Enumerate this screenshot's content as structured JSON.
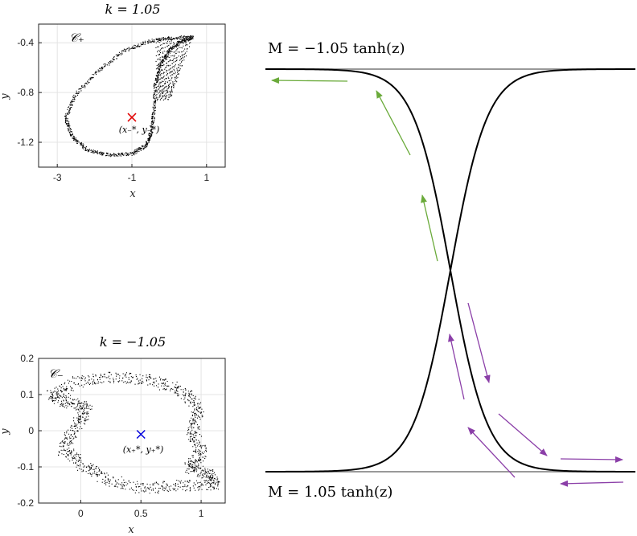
{
  "chart_data": [
    {
      "type": "scatter",
      "title": "k = 1.05",
      "xlabel": "x",
      "ylabel": "y",
      "xlim": [
        -3.5,
        1.5
      ],
      "ylim": [
        -1.4,
        -0.25
      ],
      "xticks": [
        -3,
        -1,
        1
      ],
      "yticks": [
        -0.4,
        -0.8,
        -1.2
      ],
      "xtick_labels": [
        "-3",
        "-1",
        "1"
      ],
      "ytick_labels": [
        "-0.4",
        "-0.8",
        "-1.2"
      ],
      "grid": true,
      "set_label": "𝒞₊",
      "fixed_point": {
        "x": -1.0,
        "y": -1.0,
        "label": "(x₋*, y₋*)",
        "marker": "x",
        "color": "#e00000"
      },
      "attractor_outline": [
        [
          0.62,
          -0.35
        ],
        [
          0.0,
          -0.36
        ],
        [
          -0.5,
          -0.38
        ],
        [
          -1.2,
          -0.46
        ],
        [
          -1.9,
          -0.62
        ],
        [
          -2.55,
          -0.82
        ],
        [
          -2.78,
          -1.0
        ],
        [
          -2.62,
          -1.15
        ],
        [
          -2.2,
          -1.26
        ],
        [
          -1.6,
          -1.3
        ],
        [
          -1.0,
          -1.29
        ],
        [
          -0.62,
          -1.22
        ],
        [
          -0.5,
          -1.12
        ],
        [
          -0.42,
          -0.95
        ],
        [
          -0.38,
          -0.72
        ],
        [
          -0.22,
          -0.55
        ],
        [
          0.05,
          -0.44
        ],
        [
          0.35,
          -0.38
        ],
        [
          0.62,
          -0.35
        ]
      ],
      "color": "#000000"
    },
    {
      "type": "scatter",
      "title": "k = −1.05",
      "xlabel": "x",
      "ylabel": "y",
      "xlim": [
        -0.35,
        1.2
      ],
      "ylim": [
        -0.2,
        0.2
      ],
      "xticks": [
        0,
        0.5,
        1
      ],
      "yticks": [
        0.2,
        0.1,
        0,
        -0.1,
        -0.2
      ],
      "xtick_labels": [
        "0",
        "0.5",
        "1"
      ],
      "ytick_labels": [
        "0.2",
        "0.1",
        "0",
        "-0.1",
        "-0.2"
      ],
      "grid": true,
      "set_label": "𝒞₋",
      "fixed_point": {
        "x": 0.5,
        "y": -0.01,
        "label": "(x₊*, y₊*)",
        "marker": "x",
        "color": "#0000dd"
      },
      "attractor_outline": [
        [
          -0.25,
          0.1
        ],
        [
          0.0,
          0.14
        ],
        [
          0.3,
          0.15
        ],
        [
          0.6,
          0.14
        ],
        [
          0.85,
          0.11
        ],
        [
          0.98,
          0.06
        ],
        [
          0.92,
          0.0
        ],
        [
          1.0,
          -0.06
        ],
        [
          0.9,
          -0.1
        ],
        [
          1.05,
          -0.12
        ],
        [
          1.12,
          -0.15
        ],
        [
          0.8,
          -0.15
        ],
        [
          0.5,
          -0.16
        ],
        [
          0.2,
          -0.13
        ],
        [
          0.0,
          -0.09
        ],
        [
          -0.15,
          -0.05
        ],
        [
          -0.05,
          0.01
        ],
        [
          0.05,
          0.06
        ],
        [
          -0.1,
          0.08
        ],
        [
          -0.25,
          0.1
        ]
      ],
      "color": "#000000"
    },
    {
      "type": "line",
      "series": [
        {
          "name": "M = −1.05 tanh(z)",
          "amplitude": -1.05,
          "color": "#000000"
        },
        {
          "name": "M = 1.05 tanh(z)",
          "amplitude": 1.05,
          "color": "#000000"
        }
      ],
      "asymptotes": [
        1.05,
        -1.05
      ],
      "asymptote_color": "#888888",
      "label_top": "M = −1.05 tanh(z)",
      "label_bottom": "M = 1.05 tanh(z)",
      "arrows": {
        "green": "#6aaa3a",
        "purple": "#8b3fa8",
        "green_count": 3,
        "purple_count": 8
      },
      "axes_visible": false
    }
  ]
}
